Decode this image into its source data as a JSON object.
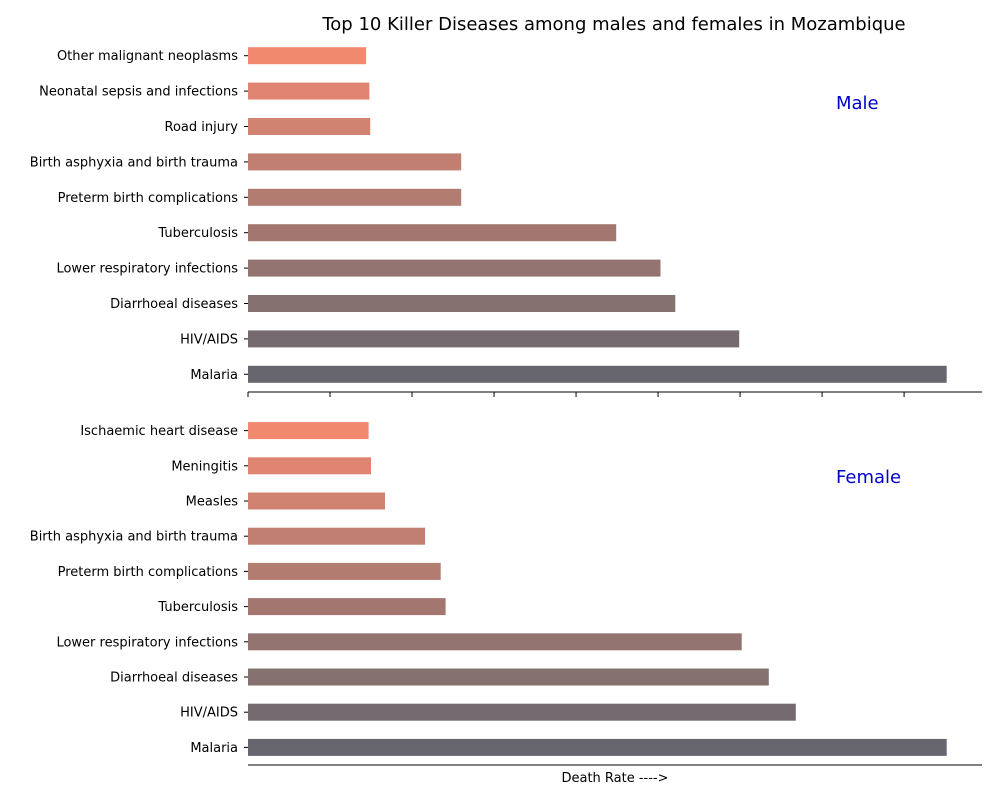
{
  "chart_data": [
    {
      "type": "bar",
      "orientation": "horizontal",
      "panel_label": "Male",
      "categories": [
        "Malaria",
        "HIV/AIDS",
        "Diarrhoeal diseases",
        "Lower respiratory infections",
        "Tuberculosis",
        "Preterm birth complications",
        "Birth asphyxia and birth trauma",
        "Road injury",
        "Neonatal sepsis and infections",
        "Other malignant neoplasms"
      ],
      "values": [
        85.2,
        59.9,
        52.1,
        50.3,
        44.9,
        26.0,
        26.0,
        14.9,
        14.8,
        14.4
      ],
      "colors": [
        "#67666f",
        "#756a6f",
        "#857170",
        "#937470",
        "#a3766f",
        "#b37c70",
        "#c07f70",
        "#d08371",
        "#e08572",
        "#f0896e"
      ],
      "xlim": [
        0,
        89.5
      ],
      "xlabel": "",
      "show_xtick_marks": true,
      "grid": false
    },
    {
      "type": "bar",
      "orientation": "horizontal",
      "panel_label": "Female",
      "categories": [
        "Malaria",
        "HIV/AIDS",
        "Diarrhoeal diseases",
        "Lower respiratory infections",
        "Tuberculosis",
        "Preterm birth complications",
        "Birth asphyxia and birth trauma",
        "Measles",
        "Meningitis",
        "Ischaemic heart disease"
      ],
      "values": [
        85.2,
        66.8,
        63.5,
        60.2,
        24.1,
        23.5,
        21.6,
        16.7,
        15.0,
        14.7
      ],
      "colors": [
        "#67666f",
        "#756a6f",
        "#857170",
        "#937470",
        "#a3766f",
        "#b37c70",
        "#c07f70",
        "#d08371",
        "#e08572",
        "#f0896e"
      ],
      "xlim": [
        0,
        89.5
      ],
      "xlabel": "Death Rate ---->",
      "show_xtick_marks": false,
      "grid": false
    }
  ],
  "title": "Top 10 Killer Diseases among males and females in Mozambique",
  "label_color": "#0000cc"
}
